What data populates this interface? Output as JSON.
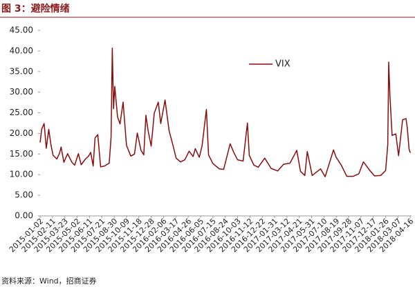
{
  "chart_data": {
    "type": "line",
    "title": "图 3：避险情绪",
    "source": "资料来源：Wind，招商证券",
    "x": [
      "2015-01-02",
      "2015-01-07",
      "2015-01-15",
      "2015-01-22",
      "2015-01-30",
      "2015-02-06",
      "2015-02-13",
      "2015-02-25",
      "2015-03-06",
      "2015-03-11",
      "2015-03-20",
      "2015-04-01",
      "2015-04-15",
      "2015-04-24",
      "2015-05-06",
      "2015-05-15",
      "2015-05-29",
      "2015-06-08",
      "2015-06-15",
      "2015-06-23",
      "2015-06-29",
      "2015-07-08",
      "2015-07-17",
      "2015-07-30",
      "2015-08-14",
      "2015-08-20",
      "2015-08-24",
      "2015-08-28",
      "2015-09-01",
      "2015-09-10",
      "2015-09-18",
      "2015-09-28",
      "2015-10-09",
      "2015-10-23",
      "2015-11-04",
      "2015-11-13",
      "2015-11-25",
      "2015-12-04",
      "2015-12-11",
      "2015-12-18",
      "2015-12-28",
      "2016-01-07",
      "2016-01-20",
      "2016-01-28",
      "2016-02-11",
      "2016-02-24",
      "2016-03-07",
      "2016-03-18",
      "2016-04-01",
      "2016-04-15",
      "2016-04-29",
      "2016-05-12",
      "2016-05-19",
      "2016-06-01",
      "2016-06-10",
      "2016-06-24",
      "2016-07-01",
      "2016-07-15",
      "2016-08-05",
      "2016-08-19",
      "2016-09-09",
      "2016-09-20",
      "2016-10-03",
      "2016-10-21",
      "2016-11-04",
      "2016-11-10",
      "2016-11-25",
      "2016-12-09",
      "2016-12-30",
      "2017-01-20",
      "2017-02-10",
      "2017-03-01",
      "2017-03-22",
      "2017-04-13",
      "2017-04-25",
      "2017-05-09",
      "2017-05-17",
      "2017-06-02",
      "2017-06-29",
      "2017-07-14",
      "2017-08-10",
      "2017-08-18",
      "2017-09-05",
      "2017-09-22",
      "2017-10-13",
      "2017-10-31",
      "2017-11-15",
      "2017-12-06",
      "2017-12-21",
      "2018-01-10",
      "2018-01-26",
      "2018-02-02",
      "2018-02-05",
      "2018-02-09",
      "2018-02-16",
      "2018-02-28",
      "2018-03-09",
      "2018-03-22",
      "2018-04-02",
      "2018-04-06",
      "2018-04-12",
      "2018-04-16"
    ],
    "series": [
      {
        "name": "VIX",
        "color": "#8b0a0a",
        "values": [
          17.8,
          21,
          22.4,
          16.4,
          21,
          17.3,
          14.7,
          13.8,
          15.2,
          16.7,
          13,
          15.1,
          13,
          12.3,
          15.1,
          12.4,
          13.8,
          14.5,
          15.4,
          12.1,
          18.9,
          19.7,
          11.9,
          12.1,
          12.8,
          19.1,
          40.7,
          26,
          31.4,
          24,
          22.3,
          27.6,
          17.1,
          14.5,
          15,
          20.1,
          15.9,
          14.8,
          24.4,
          20.7,
          16.9,
          24.9,
          27.6,
          22.4,
          28.1,
          20.7,
          17.3,
          14,
          13.1,
          13.6,
          15.7,
          14.4,
          16.3,
          14.2,
          17,
          25.8,
          14.8,
          12.7,
          11.4,
          11.3,
          17.5,
          15.5,
          13.6,
          13.3,
          22.5,
          14.7,
          12.3,
          11.8,
          14,
          11.5,
          10.9,
          12.5,
          12.8,
          15.9,
          10.8,
          9.8,
          15.6,
          9.8,
          11.4,
          9.5,
          16,
          14.3,
          12.2,
          9.6,
          9.6,
          10.2,
          13.1,
          11,
          9.7,
          9.8,
          11,
          17.3,
          37.3,
          29.1,
          19.5,
          19.9,
          14.6,
          23.3,
          23.6,
          21.5,
          16.2,
          15.3
        ]
      }
    ],
    "xlim": [
      "2015-01-02",
      "2018-04-20"
    ],
    "xticks": [
      "2015-01-02",
      "2015-02-11",
      "2015-03-23",
      "2015-05-02",
      "2015-06-11",
      "2015-07-21",
      "2015-08-30",
      "2015-10-09",
      "2015-11-18",
      "2015-12-28",
      "2016-02-06",
      "2016-03-17",
      "2016-04-26",
      "2016-06-05",
      "2016-07-15",
      "2016-08-24",
      "2016-10-03",
      "2016-11-12",
      "2016-12-22",
      "2017-01-31",
      "2017-03-12",
      "2017-04-21",
      "2017-05-31",
      "2017-07-10",
      "2017-08-19",
      "2017-09-28",
      "2017-11-07",
      "2017-12-17",
      "2018-01-26",
      "2018-03-07",
      "2018-04-16"
    ],
    "ylim": [
      0,
      45
    ],
    "yticks": [
      {
        "value": 0,
        "label": "0.00"
      },
      {
        "value": 5,
        "label": "5.00"
      },
      {
        "value": 10,
        "label": "10.00"
      },
      {
        "value": 15,
        "label": "15.00"
      },
      {
        "value": 20,
        "label": "20.00"
      },
      {
        "value": 25,
        "label": "25.00"
      },
      {
        "value": 30,
        "label": "30.00"
      },
      {
        "value": 35,
        "label": "35.00"
      },
      {
        "value": 40,
        "label": "40.00"
      },
      {
        "value": 45,
        "label": "45.00"
      }
    ],
    "grid": false
  }
}
